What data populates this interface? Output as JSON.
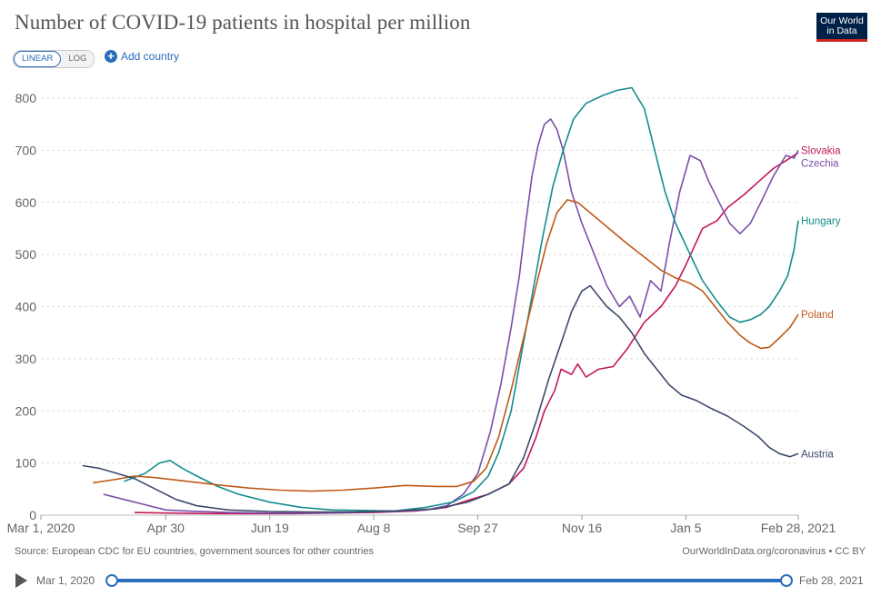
{
  "header": {
    "title": "Number of COVID-19 patients in hospital per million",
    "logo_line1": "Our World",
    "logo_line2": "in Data",
    "scale_linear": "LINEAR",
    "scale_log": "LOG",
    "add_country": "Add country"
  },
  "footer": {
    "source": "Source: European CDC for EU countries, government sources for other countries",
    "credit": "OurWorldInData.org/coronavirus • CC BY"
  },
  "timeline": {
    "start_label": "Mar 1, 2020",
    "end_label": "Feb 28, 2021"
  },
  "chart_data": {
    "type": "line",
    "title": "Number of COVID-19 patients in hospital per million",
    "xlabel": "",
    "ylabel": "",
    "x_unit": "days since Mar 1, 2020",
    "xlim": [
      0,
      364
    ],
    "ylim": [
      0,
      800
    ],
    "y_ticks": [
      0,
      100,
      200,
      300,
      400,
      500,
      600,
      700,
      800
    ],
    "x_ticks": [
      {
        "day": 0,
        "label": "Mar 1, 2020"
      },
      {
        "day": 60,
        "label": "Apr 30"
      },
      {
        "day": 110,
        "label": "Jun 19"
      },
      {
        "day": 160,
        "label": "Aug 8"
      },
      {
        "day": 210,
        "label": "Sep 27"
      },
      {
        "day": 260,
        "label": "Nov 16"
      },
      {
        "day": 310,
        "label": "Jan 5"
      },
      {
        "day": 364,
        "label": "Feb 28, 2021"
      }
    ],
    "grid": true,
    "series": [
      {
        "name": "Slovakia",
        "color": "#c2185b",
        "points": [
          [
            45,
            5
          ],
          [
            60,
            4
          ],
          [
            80,
            3
          ],
          [
            100,
            3
          ],
          [
            120,
            3
          ],
          [
            140,
            4
          ],
          [
            160,
            5
          ],
          [
            180,
            8
          ],
          [
            195,
            15
          ],
          [
            205,
            28
          ],
          [
            215,
            40
          ],
          [
            225,
            60
          ],
          [
            232,
            90
          ],
          [
            238,
            150
          ],
          [
            242,
            200
          ],
          [
            247,
            240
          ],
          [
            250,
            280
          ],
          [
            255,
            270
          ],
          [
            258,
            290
          ],
          [
            262,
            265
          ],
          [
            268,
            280
          ],
          [
            275,
            285
          ],
          [
            282,
            320
          ],
          [
            290,
            370
          ],
          [
            298,
            400
          ],
          [
            305,
            440
          ],
          [
            310,
            480
          ],
          [
            318,
            550
          ],
          [
            325,
            565
          ],
          [
            330,
            590
          ],
          [
            338,
            615
          ],
          [
            345,
            640
          ],
          [
            352,
            665
          ],
          [
            358,
            680
          ],
          [
            362,
            690
          ],
          [
            364,
            695
          ]
        ]
      },
      {
        "name": "Czechia",
        "color": "#7b4fa8",
        "points": [
          [
            30,
            40
          ],
          [
            40,
            30
          ],
          [
            50,
            20
          ],
          [
            60,
            10
          ],
          [
            70,
            8
          ],
          [
            90,
            5
          ],
          [
            110,
            4
          ],
          [
            130,
            4
          ],
          [
            150,
            5
          ],
          [
            170,
            7
          ],
          [
            185,
            10
          ],
          [
            195,
            18
          ],
          [
            203,
            40
          ],
          [
            210,
            80
          ],
          [
            216,
            160
          ],
          [
            221,
            250
          ],
          [
            226,
            360
          ],
          [
            230,
            460
          ],
          [
            233,
            560
          ],
          [
            236,
            650
          ],
          [
            239,
            710
          ],
          [
            242,
            750
          ],
          [
            245,
            760
          ],
          [
            248,
            740
          ],
          [
            251,
            700
          ],
          [
            255,
            620
          ],
          [
            260,
            560
          ],
          [
            266,
            500
          ],
          [
            272,
            440
          ],
          [
            278,
            400
          ],
          [
            283,
            420
          ],
          [
            288,
            380
          ],
          [
            293,
            450
          ],
          [
            298,
            430
          ],
          [
            302,
            520
          ],
          [
            307,
            620
          ],
          [
            312,
            690
          ],
          [
            317,
            680
          ],
          [
            321,
            640
          ],
          [
            326,
            600
          ],
          [
            331,
            560
          ],
          [
            336,
            540
          ],
          [
            341,
            560
          ],
          [
            346,
            600
          ],
          [
            352,
            650
          ],
          [
            358,
            690
          ],
          [
            362,
            685
          ],
          [
            364,
            700
          ]
        ]
      },
      {
        "name": "Hungary",
        "color": "#138d8d",
        "points": [
          [
            40,
            65
          ],
          [
            50,
            80
          ],
          [
            57,
            100
          ],
          [
            62,
            105
          ],
          [
            68,
            90
          ],
          [
            75,
            75
          ],
          [
            85,
            55
          ],
          [
            95,
            40
          ],
          [
            110,
            25
          ],
          [
            125,
            15
          ],
          [
            140,
            10
          ],
          [
            155,
            9
          ],
          [
            170,
            8
          ],
          [
            185,
            15
          ],
          [
            198,
            25
          ],
          [
            208,
            45
          ],
          [
            215,
            75
          ],
          [
            220,
            120
          ],
          [
            226,
            200
          ],
          [
            231,
            310
          ],
          [
            236,
            420
          ],
          [
            241,
            530
          ],
          [
            246,
            630
          ],
          [
            251,
            700
          ],
          [
            256,
            760
          ],
          [
            262,
            790
          ],
          [
            270,
            805
          ],
          [
            277,
            815
          ],
          [
            284,
            820
          ],
          [
            290,
            780
          ],
          [
            295,
            700
          ],
          [
            300,
            620
          ],
          [
            305,
            560
          ],
          [
            312,
            500
          ],
          [
            318,
            450
          ],
          [
            325,
            410
          ],
          [
            331,
            380
          ],
          [
            336,
            370
          ],
          [
            341,
            375
          ],
          [
            346,
            385
          ],
          [
            350,
            400
          ],
          [
            355,
            430
          ],
          [
            359,
            460
          ],
          [
            362,
            510
          ],
          [
            364,
            565
          ]
        ]
      },
      {
        "name": "Poland",
        "color": "#c05917",
        "points": [
          [
            25,
            62
          ],
          [
            35,
            68
          ],
          [
            45,
            75
          ],
          [
            55,
            72
          ],
          [
            70,
            65
          ],
          [
            85,
            58
          ],
          [
            100,
            52
          ],
          [
            115,
            48
          ],
          [
            130,
            46
          ],
          [
            145,
            48
          ],
          [
            160,
            52
          ],
          [
            175,
            57
          ],
          [
            190,
            55
          ],
          [
            200,
            55
          ],
          [
            208,
            65
          ],
          [
            214,
            90
          ],
          [
            220,
            150
          ],
          [
            226,
            240
          ],
          [
            232,
            340
          ],
          [
            238,
            440
          ],
          [
            243,
            520
          ],
          [
            248,
            580
          ],
          [
            253,
            605
          ],
          [
            258,
            600
          ],
          [
            264,
            580
          ],
          [
            270,
            560
          ],
          [
            276,
            540
          ],
          [
            282,
            520
          ],
          [
            290,
            495
          ],
          [
            298,
            470
          ],
          [
            305,
            455
          ],
          [
            312,
            445
          ],
          [
            318,
            430
          ],
          [
            324,
            400
          ],
          [
            330,
            370
          ],
          [
            336,
            345
          ],
          [
            341,
            330
          ],
          [
            346,
            320
          ],
          [
            350,
            322
          ],
          [
            355,
            340
          ],
          [
            360,
            360
          ],
          [
            364,
            385
          ]
        ]
      },
      {
        "name": "Austria",
        "color": "#3d4a6b",
        "points": [
          [
            20,
            95
          ],
          [
            28,
            90
          ],
          [
            35,
            82
          ],
          [
            45,
            70
          ],
          [
            55,
            50
          ],
          [
            65,
            30
          ],
          [
            75,
            18
          ],
          [
            90,
            10
          ],
          [
            110,
            7
          ],
          [
            130,
            6
          ],
          [
            150,
            6
          ],
          [
            170,
            8
          ],
          [
            190,
            12
          ],
          [
            205,
            25
          ],
          [
            215,
            40
          ],
          [
            225,
            60
          ],
          [
            232,
            110
          ],
          [
            238,
            180
          ],
          [
            244,
            260
          ],
          [
            250,
            330
          ],
          [
            255,
            390
          ],
          [
            260,
            430
          ],
          [
            264,
            440
          ],
          [
            268,
            420
          ],
          [
            272,
            400
          ],
          [
            278,
            380
          ],
          [
            284,
            350
          ],
          [
            290,
            310
          ],
          [
            296,
            280
          ],
          [
            302,
            250
          ],
          [
            308,
            230
          ],
          [
            315,
            220
          ],
          [
            322,
            205
          ],
          [
            330,
            190
          ],
          [
            338,
            170
          ],
          [
            345,
            150
          ],
          [
            350,
            130
          ],
          [
            355,
            118
          ],
          [
            360,
            112
          ],
          [
            364,
            118
          ]
        ]
      }
    ]
  }
}
